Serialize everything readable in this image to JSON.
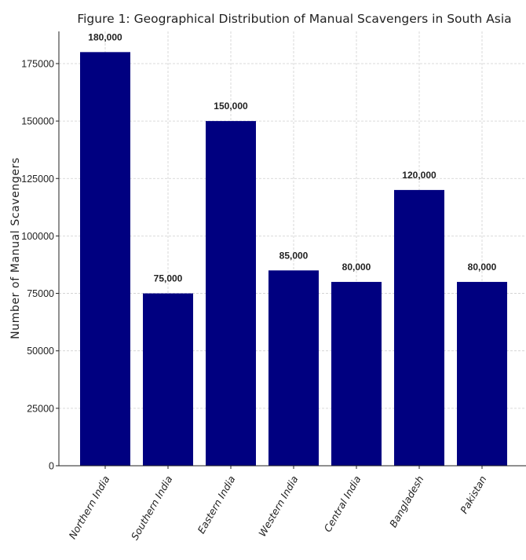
{
  "chart_data": {
    "type": "bar",
    "title": "Figure 1: Geographical Distribution of Manual Scavengers in South Asia",
    "xlabel": "",
    "ylabel": "Number of Manual Scavengers",
    "categories": [
      "Northern India",
      "Southern India",
      "Eastern India",
      "Western India",
      "Central India",
      "Bangladesh",
      "Pakistan"
    ],
    "values": [
      180000,
      75000,
      150000,
      85000,
      80000,
      120000,
      80000
    ],
    "value_labels": [
      "180,000",
      "75,000",
      "150,000",
      "85,000",
      "80,000",
      "120,000",
      "80,000"
    ],
    "y_ticks": [
      "0",
      "25000",
      "50000",
      "75000",
      "100000",
      "125000",
      "150000",
      "175000"
    ],
    "y_tick_values": [
      0,
      25000,
      50000,
      75000,
      100000,
      125000,
      150000,
      175000
    ],
    "ylim": [
      0,
      189000
    ],
    "grid": true,
    "bar_color": "#000080"
  }
}
